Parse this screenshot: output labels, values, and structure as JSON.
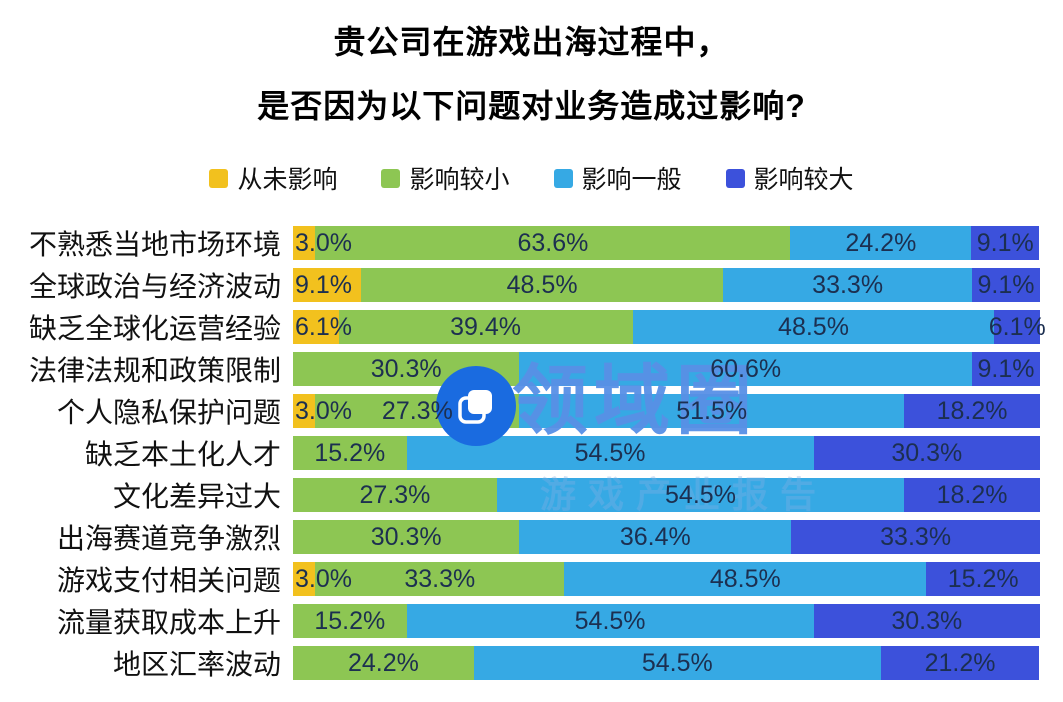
{
  "title": {
    "line1": "贵公司在游戏出海过程中，",
    "line2": "是否因为以下问题对业务造成过影响?"
  },
  "legend": {
    "items": [
      {
        "key": "never",
        "label": "从未影响",
        "color": "#F2C11E"
      },
      {
        "key": "minor",
        "label": "影响较小",
        "color": "#8DC653"
      },
      {
        "key": "moderate",
        "label": "影响一般",
        "color": "#36A9E4"
      },
      {
        "key": "major",
        "label": "影响较大",
        "color": "#3C51DB"
      }
    ]
  },
  "chart_data": {
    "type": "bar",
    "variant": "horizontal-stacked-100pct",
    "title": "贵公司在游戏出海过程中，是否因为以下问题对业务造成过影响?",
    "xlim": [
      0,
      100
    ],
    "value_suffix": "%",
    "grid": false,
    "legend_position": "top-center",
    "value_label_color": "#1c2f50",
    "categories": [
      "不熟悉当地市场环境",
      "全球政治与经济波动",
      "缺乏全球化运营经验",
      "法律法规和政策限制",
      "个人隐私保护问题",
      "缺乏本土化人才",
      "文化差异过大",
      "出海赛道竞争激烈",
      "游戏支付相关问题",
      "流量获取成本上升",
      "地区汇率波动"
    ],
    "series": [
      {
        "key": "never",
        "name": "从未影响",
        "color": "#F2C11E",
        "values": [
          3.0,
          9.1,
          6.1,
          null,
          3.0,
          null,
          null,
          null,
          3.0,
          null,
          null
        ]
      },
      {
        "key": "minor",
        "name": "影响较小",
        "color": "#8DC653",
        "values": [
          63.6,
          48.5,
          39.4,
          30.3,
          27.3,
          15.2,
          27.3,
          30.3,
          33.3,
          15.2,
          24.2
        ]
      },
      {
        "key": "moderate",
        "name": "影响一般",
        "color": "#36A9E4",
        "values": [
          24.2,
          33.3,
          48.5,
          60.6,
          51.5,
          54.5,
          54.5,
          36.4,
          48.5,
          54.5,
          54.5
        ]
      },
      {
        "key": "major",
        "name": "影响较大",
        "color": "#3C51DB",
        "values": [
          9.1,
          9.1,
          6.1,
          9.1,
          18.2,
          30.3,
          18.2,
          33.3,
          15.2,
          30.3,
          21.2
        ]
      }
    ]
  },
  "watermark": {
    "text": "领域圈",
    "text_color": "#5890E6",
    "circle_color": "#1A6BE0",
    "logo_icon": "overlapping-squares-icon",
    "ghost_text": "游戏产业报告"
  }
}
